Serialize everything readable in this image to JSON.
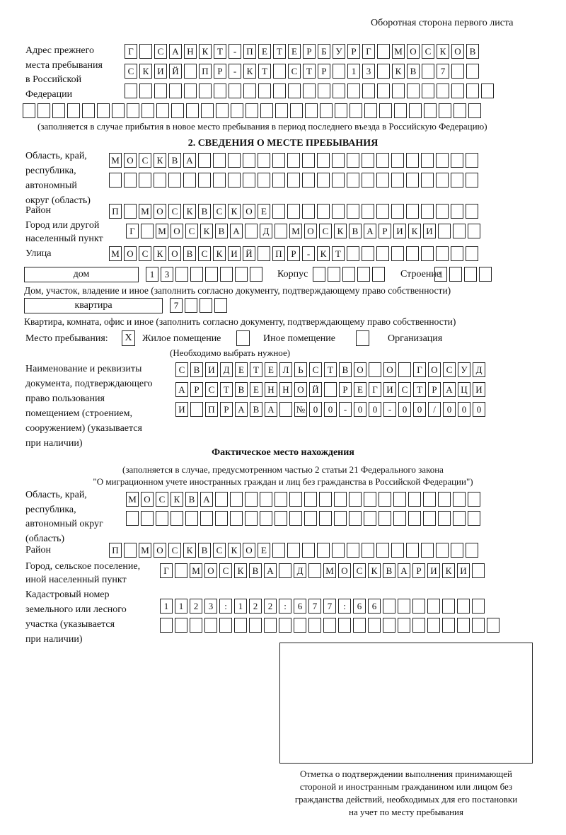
{
  "header": {
    "page_side": "Оборотная сторона первого листа"
  },
  "previous_address": {
    "label": "Адрес прежнего места пребывания в Российской Федерации",
    "label_lines": [
      "Адрес прежнего",
      "места пребывания",
      "в Российской",
      "Федерации"
    ],
    "rows": [
      [
        "Г",
        " ",
        "С",
        "А",
        "Н",
        "К",
        "Т",
        "-",
        "П",
        "Е",
        "Т",
        "Е",
        "Р",
        "Б",
        "У",
        "Р",
        "Г",
        " ",
        "М",
        "О",
        "С",
        "К",
        "О",
        "В"
      ],
      [
        "С",
        "К",
        "И",
        "Й",
        " ",
        "П",
        "Р",
        "-",
        "К",
        "Т",
        " ",
        "С",
        "Т",
        "Р",
        " ",
        "1",
        "3",
        " ",
        "К",
        "В",
        " ",
        "7",
        " ",
        " "
      ],
      [
        " ",
        " ",
        " ",
        " ",
        " ",
        " ",
        " ",
        " ",
        " ",
        " ",
        " ",
        " ",
        " ",
        " ",
        " ",
        " ",
        " ",
        " ",
        " ",
        " ",
        " ",
        " ",
        " ",
        " ",
        " "
      ],
      [
        " ",
        " ",
        " ",
        " ",
        " ",
        " ",
        " ",
        " ",
        " ",
        " ",
        " ",
        " ",
        " ",
        " ",
        " ",
        " ",
        " ",
        " ",
        " ",
        " ",
        " ",
        " ",
        " ",
        " ",
        " ",
        " ",
        " ",
        " ",
        " ",
        " ",
        " "
      ]
    ],
    "note": "(заполняется в случае прибытия в новое место пребывания в период последнего въезда в Российскую Федерацию)"
  },
  "section2": {
    "title": "2. СВЕДЕНИЯ О МЕСТЕ ПРЕБЫВАНИЯ",
    "region_label": [
      "Область, край,",
      "республика,",
      "автономный",
      "округ (область)"
    ],
    "region_rows": [
      [
        "М",
        "О",
        "С",
        "К",
        "В",
        "А",
        " ",
        " ",
        " ",
        " ",
        " ",
        " ",
        " ",
        " ",
        " ",
        " ",
        " ",
        " ",
        " ",
        " ",
        " ",
        " ",
        " ",
        " ",
        " "
      ],
      [
        " ",
        " ",
        " ",
        " ",
        " ",
        " ",
        " ",
        " ",
        " ",
        " ",
        " ",
        " ",
        " ",
        " ",
        " ",
        " ",
        " ",
        " ",
        " ",
        " ",
        " ",
        " ",
        " ",
        " ",
        " "
      ]
    ],
    "district_label": "Район",
    "district_row": [
      "П",
      " ",
      "М",
      "О",
      "С",
      "К",
      "В",
      "С",
      "К",
      "О",
      "Е",
      " ",
      " ",
      " ",
      " ",
      " ",
      " ",
      " ",
      " ",
      " ",
      " ",
      " ",
      " ",
      " ",
      " "
    ],
    "city_label": [
      "Город или другой",
      "населенный пункт"
    ],
    "city_row": [
      "Г",
      " ",
      "М",
      "О",
      "С",
      "К",
      "В",
      "А",
      " ",
      "Д",
      " ",
      "М",
      "О",
      "С",
      "К",
      "В",
      "А",
      "Р",
      "И",
      "К",
      "И",
      " ",
      " ",
      " "
    ],
    "street_label": "Улица",
    "street_row": [
      "М",
      "О",
      "С",
      "К",
      "О",
      "В",
      "С",
      "К",
      "И",
      "Й",
      " ",
      "П",
      "Р",
      "-",
      "К",
      "Т",
      " ",
      " ",
      " ",
      " ",
      " ",
      " ",
      " ",
      " ",
      " "
    ],
    "house_type": "дом",
    "house_cells": [
      "1",
      "3",
      " ",
      " ",
      " ",
      " ",
      " ",
      " "
    ],
    "korpus_label": "Корпус",
    "korpus_cells": [
      " ",
      " ",
      " ",
      " ",
      " "
    ],
    "building_label": "Строение",
    "building_cells": [
      "1",
      " ",
      " ",
      " "
    ],
    "house_note": "Дом, участок, владение и иное (заполнить согласно документу, подтверждающему право собственности)",
    "apt_type": "квартира",
    "apt_cells": [
      "7",
      " ",
      " ",
      " "
    ],
    "apt_note": "Квартира, комната, офис и иное (заполнить согласно документу, подтверждающему право собственности)",
    "stay_label": "Место пребывания:",
    "stay_options": [
      {
        "label": "Жилое помещение",
        "mark": "X"
      },
      {
        "label": "Иное помещение",
        "mark": ""
      },
      {
        "label": "Организация",
        "mark": ""
      }
    ],
    "stay_note": "(Необходимо выбрать нужное)",
    "doc_label": [
      "Наименование и реквизиты",
      "документа, подтверждающего",
      "право пользования",
      "помещением (строением,",
      "сооружением) (указывается",
      "при наличии)"
    ],
    "doc_rows": [
      [
        "С",
        "В",
        "И",
        "Д",
        "Е",
        "Т",
        "Е",
        "Л",
        "Ь",
        "С",
        "Т",
        "В",
        "О",
        " ",
        "О",
        " ",
        "Г",
        "О",
        "С",
        "У",
        "Д"
      ],
      [
        "А",
        "Р",
        "С",
        "Т",
        "В",
        "Е",
        "Н",
        "Н",
        "О",
        "Й",
        " ",
        "Р",
        "Е",
        "Г",
        "И",
        "С",
        "Т",
        "Р",
        "А",
        "Ц",
        "И"
      ],
      [
        "И",
        " ",
        "П",
        "Р",
        "А",
        "В",
        "А",
        " ",
        "№",
        "0",
        "0",
        "-",
        "0",
        "0",
        "-",
        "0",
        "0",
        "/",
        "0",
        "0",
        "0"
      ]
    ]
  },
  "actual": {
    "title": "Фактическое место нахождения",
    "note_lines": [
      "(заполняется в случае, предусмотренном частью 2 статьи 21 Федерального закона",
      "\"О миграционном учете иностранных граждан и лиц без гражданства в Российской Федерации\")"
    ],
    "region_label": [
      "Область, край,",
      "республика,",
      "автономный округ",
      "(область)"
    ],
    "region_rows": [
      [
        "М",
        "О",
        "С",
        "К",
        "В",
        "А",
        " ",
        " ",
        " ",
        " ",
        " ",
        " ",
        " ",
        " ",
        " ",
        " ",
        " ",
        " ",
        " ",
        " ",
        " ",
        " ",
        " ",
        " "
      ],
      [
        " ",
        " ",
        " ",
        " ",
        " ",
        " ",
        " ",
        " ",
        " ",
        " ",
        " ",
        " ",
        " ",
        " ",
        " ",
        " ",
        " ",
        " ",
        " ",
        " ",
        " ",
        " ",
        " ",
        " "
      ]
    ],
    "district_label": "Район",
    "district_row": [
      "П",
      " ",
      "М",
      "О",
      "С",
      "К",
      "В",
      "С",
      "К",
      "О",
      "Е",
      " ",
      " ",
      " ",
      " ",
      " ",
      " ",
      " ",
      " ",
      " ",
      " ",
      " ",
      " ",
      " ",
      " "
    ],
    "city_label": [
      "Город, сельское поселение,",
      "иной населенный пункт"
    ],
    "city_row": [
      "Г",
      " ",
      "М",
      "О",
      "С",
      "К",
      "В",
      "А",
      " ",
      "Д",
      " ",
      "М",
      "О",
      "С",
      "К",
      "В",
      "А",
      "Р",
      "И",
      "К",
      "И",
      " "
    ],
    "cadastre_label": [
      "Кадастровый номер",
      "земельного или лесного",
      "участка (указывается",
      "при наличии)"
    ],
    "cadastre_rows": [
      [
        "1",
        "1",
        "2",
        "3",
        ":",
        "1",
        "2",
        "2",
        ":",
        "6",
        "7",
        "7",
        ":",
        "6",
        "6",
        " ",
        " ",
        " ",
        " ",
        " ",
        " ",
        " "
      ],
      [
        " ",
        " ",
        " ",
        " ",
        " ",
        " ",
        " ",
        " ",
        " ",
        " ",
        " ",
        " ",
        " ",
        " ",
        " ",
        " ",
        " ",
        " ",
        " ",
        " ",
        " ",
        " ",
        " "
      ]
    ]
  },
  "stamp": {
    "caption_lines": [
      "Отметка о подтверждении выполнения принимающей",
      "стороной и иностранным гражданином или лицом без",
      "гражданства действий, необходимых для его постановки",
      "на учет по месту пребывания"
    ]
  }
}
